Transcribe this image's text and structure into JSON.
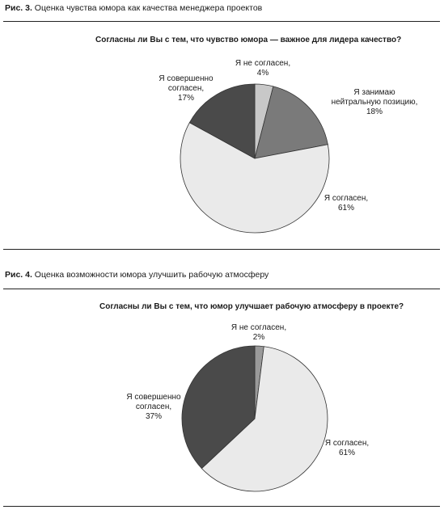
{
  "chart_data": [
    {
      "type": "pie",
      "caption_prefix": "Рис. 3.",
      "caption_text": " Оценка чувства юмора как качества менеджера проектов",
      "question": "Согласны ли Вы с тем, что чувство юмора — важное для лидера качество?",
      "slices": [
        {
          "label_lines": [
            "Я не согласен,",
            "4%"
          ],
          "value": 4,
          "color": "#c8c8c8"
        },
        {
          "label_lines": [
            "Я занимаю",
            "нейтральную позицию,",
            "18%"
          ],
          "value": 18,
          "color": "#7a7a7a"
        },
        {
          "label_lines": [
            "Я согласен,",
            "61%"
          ],
          "value": 61,
          "color": "#eaeaea"
        },
        {
          "label_lines": [
            "Я совершенно",
            "согласен,",
            "17%"
          ],
          "value": 17,
          "color": "#4a4a4a"
        }
      ]
    },
    {
      "type": "pie",
      "caption_prefix": "Рис. 4.",
      "caption_text": " Оценка возможности юмора улучшить рабочую атмосферу",
      "question": "Согласны ли Вы с тем, что юмор улучшает рабочую атмосферу в проекте?",
      "slices": [
        {
          "label_lines": [
            "Я не согласен,",
            "2%"
          ],
          "value": 2,
          "color": "#9a9a9a"
        },
        {
          "label_lines": [
            "Я согласен,",
            "61%"
          ],
          "value": 61,
          "color": "#eaeaea"
        },
        {
          "label_lines": [
            "Я совершенно",
            "согласен,",
            "37%"
          ],
          "value": 37,
          "color": "#4a4a4a"
        }
      ]
    }
  ]
}
